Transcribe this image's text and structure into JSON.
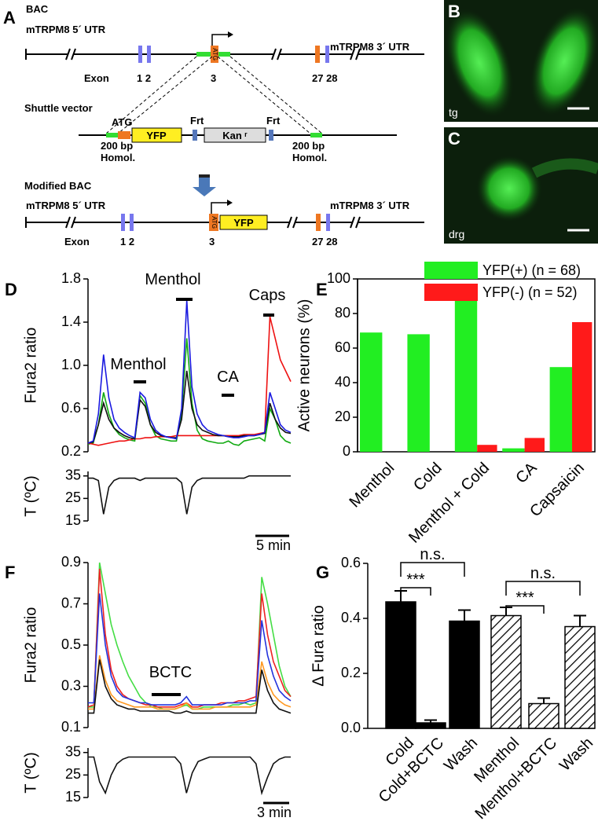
{
  "diagram": {
    "panel_label": "A",
    "bac": {
      "title": "BAC",
      "utr5": "mTRPM8 5´ UTR",
      "utr3": "mTRPM8 3´ UTR",
      "exon_label": "Exon",
      "exons_left": "1 2",
      "exon3": "3",
      "exons_right": "27 28",
      "atg": "ATG"
    },
    "shuttle": {
      "title": "Shuttle vector",
      "atg": "ATG",
      "yfp": "YFP",
      "frt_left": "Frt",
      "kan": "Kan ʳ",
      "frt_right": "Frt",
      "homol_left": [
        "200 bp",
        "Homol."
      ],
      "homol_right": [
        "200 bp",
        "Homol."
      ]
    },
    "modified": {
      "title": "Modified BAC",
      "utr5": "mTRPM8 5´ UTR",
      "utr3": "mTRPM8 3´ UTR",
      "exon_label": "Exon",
      "exons_left": "1 2",
      "exon3": "3",
      "exons_right": "27 28",
      "atg": "ATG",
      "yfp": "YFP"
    }
  },
  "images": [
    {
      "panel_label": "B",
      "label": "tg"
    },
    {
      "panel_label": "C",
      "label": "drg"
    }
  ],
  "chart_data": [
    {
      "type": "line",
      "panel_label": "D",
      "ylabel": "Fura2 ratio",
      "ylim": [
        0.2,
        1.8
      ],
      "yticks": [
        0.2,
        0.6,
        {
          "value": 1.0,
          "label": "1.0"
        },
        1.4,
        1.8
      ],
      "annotations": [
        {
          "text": "Menthol"
        },
        {
          "text": "Menthol"
        },
        {
          "text": "CA"
        },
        {
          "text": "Caps"
        }
      ],
      "series": [
        {
          "color": "#11aa11",
          "values": [
            0.27,
            0.28,
            0.45,
            0.75,
            0.55,
            0.42,
            0.36,
            0.33,
            0.31,
            0.3,
            0.72,
            0.65,
            0.45,
            0.35,
            0.32,
            0.31,
            0.3,
            0.3,
            0.55,
            1.25,
            0.65,
            0.4,
            0.32,
            0.3,
            0.29,
            0.28,
            0.28,
            0.3,
            0.27,
            0.26,
            0.3,
            0.31,
            0.32,
            0.33,
            0.3,
            0.6,
            0.5,
            0.35,
            0.3,
            0.28
          ]
        },
        {
          "color": "#ee1111",
          "values": [
            0.28,
            0.27,
            0.26,
            0.27,
            0.28,
            0.29,
            0.3,
            0.3,
            0.31,
            0.32,
            0.32,
            0.33,
            0.33,
            0.34,
            0.34,
            0.34,
            0.34,
            0.35,
            0.35,
            0.35,
            0.35,
            0.35,
            0.35,
            0.35,
            0.35,
            0.35,
            0.35,
            0.35,
            0.35,
            0.35,
            0.36,
            0.36,
            0.36,
            0.37,
            0.38,
            1.45,
            1.25,
            1.05,
            0.95,
            0.85
          ]
        },
        {
          "color": "#111111",
          "values": [
            0.28,
            0.29,
            0.45,
            0.65,
            0.5,
            0.42,
            0.38,
            0.35,
            0.33,
            0.32,
            0.68,
            0.62,
            0.45,
            0.38,
            0.35,
            0.34,
            0.33,
            0.33,
            0.5,
            0.95,
            0.6,
            0.45,
            0.4,
            0.38,
            0.36,
            0.35,
            0.35,
            0.34,
            0.34,
            0.34,
            0.35,
            0.35,
            0.35,
            0.36,
            0.37,
            0.65,
            0.5,
            0.42,
            0.38,
            0.37
          ]
        },
        {
          "color": "#1a1ae0",
          "values": [
            0.28,
            0.3,
            0.55,
            1.1,
            0.7,
            0.5,
            0.42,
            0.38,
            0.35,
            0.33,
            0.75,
            0.7,
            0.5,
            0.4,
            0.36,
            0.34,
            0.33,
            0.32,
            0.6,
            1.6,
            0.8,
            0.55,
            0.45,
            0.4,
            0.38,
            0.36,
            0.35,
            0.34,
            0.33,
            0.33,
            0.34,
            0.35,
            0.35,
            0.36,
            0.38,
            0.75,
            0.6,
            0.45,
            0.4,
            0.38
          ]
        }
      ]
    },
    {
      "type": "line",
      "ylabel": "T (ºC)",
      "ylim": [
        15,
        37
      ],
      "yticks": [
        15,
        25,
        35
      ],
      "color": "#111111",
      "scale_bar": "5 min",
      "values": [
        34,
        34,
        33,
        18,
        30,
        33,
        34,
        34,
        34,
        34,
        33,
        34,
        34,
        34,
        34,
        34,
        34,
        34,
        32,
        18,
        30,
        33,
        34,
        34,
        34,
        34,
        34,
        34,
        34,
        34,
        34,
        35,
        35,
        35,
        35,
        35,
        35,
        35,
        35,
        35
      ]
    },
    {
      "type": "bar",
      "panel_label": "E",
      "ylabel": "Active neurons (%)",
      "ylim": [
        0,
        100
      ],
      "yticks": [
        0,
        20,
        40,
        60,
        80,
        100
      ],
      "legend": "upper right",
      "categories": [
        "Menthol",
        "Cold",
        "Menthol + Cold",
        "CA",
        "Capsaicin"
      ],
      "series": [
        {
          "name": "YFP(+)  (n = 68)",
          "color": "#22ee22",
          "values": [
            69,
            68,
            90,
            2,
            49
          ]
        },
        {
          "name": "YFP(-)  (n = 52)",
          "color": "#ff1a1a",
          "values": [
            0,
            0,
            4,
            8,
            75
          ]
        }
      ]
    },
    {
      "type": "line",
      "panel_label": "F",
      "ylabel": "Fura2 ratio",
      "ylim": [
        0.1,
        0.9
      ],
      "yticks": [
        0.1,
        0.3,
        0.5,
        0.7,
        0.9
      ],
      "annotations": [
        {
          "text": "BCTC"
        }
      ],
      "series": [
        {
          "color": "#44dd44",
          "values": [
            0.2,
            0.2,
            0.9,
            0.75,
            0.6,
            0.5,
            0.42,
            0.35,
            0.3,
            0.25,
            0.22,
            0.2,
            0.2,
            0.19,
            0.19,
            0.19,
            0.2,
            0.21,
            0.19,
            0.19,
            0.2,
            0.2,
            0.2,
            0.2,
            0.2,
            0.21,
            0.21,
            0.22,
            0.21,
            0.22,
            0.83,
            0.7,
            0.55,
            0.4,
            0.3,
            0.25
          ]
        },
        {
          "color": "#ee2222",
          "values": [
            0.2,
            0.21,
            0.87,
            0.55,
            0.38,
            0.3,
            0.26,
            0.24,
            0.23,
            0.22,
            0.21,
            0.21,
            0.2,
            0.2,
            0.2,
            0.2,
            0.21,
            0.22,
            0.2,
            0.2,
            0.21,
            0.21,
            0.21,
            0.22,
            0.22,
            0.22,
            0.23,
            0.23,
            0.24,
            0.25,
            0.75,
            0.55,
            0.42,
            0.35,
            0.28,
            0.25
          ]
        },
        {
          "color": "#ff9922",
          "values": [
            0.19,
            0.19,
            0.45,
            0.33,
            0.26,
            0.23,
            0.22,
            0.21,
            0.2,
            0.2,
            0.2,
            0.2,
            0.19,
            0.19,
            0.19,
            0.19,
            0.2,
            0.22,
            0.19,
            0.19,
            0.19,
            0.19,
            0.2,
            0.2,
            0.2,
            0.2,
            0.2,
            0.2,
            0.2,
            0.21,
            0.42,
            0.32,
            0.26,
            0.23,
            0.21,
            0.2
          ]
        },
        {
          "color": "#2233dd",
          "values": [
            0.22,
            0.22,
            0.75,
            0.5,
            0.35,
            0.28,
            0.25,
            0.24,
            0.23,
            0.22,
            0.22,
            0.21,
            0.21,
            0.21,
            0.21,
            0.21,
            0.22,
            0.25,
            0.21,
            0.21,
            0.21,
            0.21,
            0.21,
            0.21,
            0.22,
            0.22,
            0.22,
            0.22,
            0.23,
            0.23,
            0.62,
            0.45,
            0.35,
            0.28,
            0.25,
            0.23
          ]
        },
        {
          "color": "#111111",
          "values": [
            0.17,
            0.17,
            0.43,
            0.3,
            0.24,
            0.21,
            0.2,
            0.19,
            0.19,
            0.18,
            0.18,
            0.18,
            0.18,
            0.18,
            0.18,
            0.17,
            0.17,
            0.18,
            0.17,
            0.17,
            0.17,
            0.17,
            0.17,
            0.17,
            0.17,
            0.17,
            0.17,
            0.17,
            0.17,
            0.17,
            0.38,
            0.28,
            0.22,
            0.19,
            0.18,
            0.17
          ]
        }
      ]
    },
    {
      "type": "line",
      "ylabel": "T (ºC)",
      "ylim": [
        15,
        37
      ],
      "yticks": [
        15,
        25,
        35
      ],
      "color": "#111111",
      "scale_bar": "3 min",
      "values": [
        33,
        33,
        22,
        17,
        25,
        30,
        32,
        33,
        33,
        33,
        33,
        33,
        33,
        33,
        33,
        33,
        30,
        17,
        26,
        31,
        32,
        33,
        33,
        33,
        33,
        33,
        33,
        33,
        33,
        30,
        17,
        24,
        30,
        32,
        33,
        33
      ]
    },
    {
      "type": "errorbar",
      "panel_label": "G",
      "ylabel": "Δ Fura ratio",
      "ylim": [
        0,
        0.6
      ],
      "yticks": [
        {
          "value": 0,
          "label": "0.0"
        },
        0.2,
        0.4,
        0.6
      ],
      "color": "#000000",
      "categories": [
        "Cold",
        "Cold+BCTC",
        "Wash",
        "Menthol",
        "Menthol+BCTC",
        "Wash"
      ],
      "values": [
        0.46,
        0.02,
        0.39,
        0.41,
        0.09,
        0.37
      ],
      "errors": [
        0.04,
        0.01,
        0.04,
        0.03,
        0.02,
        0.04
      ],
      "hatched": [
        false,
        false,
        false,
        true,
        true,
        true
      ],
      "annotations": [
        {
          "text": "n.s."
        },
        {
          "text": "***"
        },
        {
          "text": "n.s."
        },
        {
          "text": "***"
        }
      ]
    }
  ]
}
